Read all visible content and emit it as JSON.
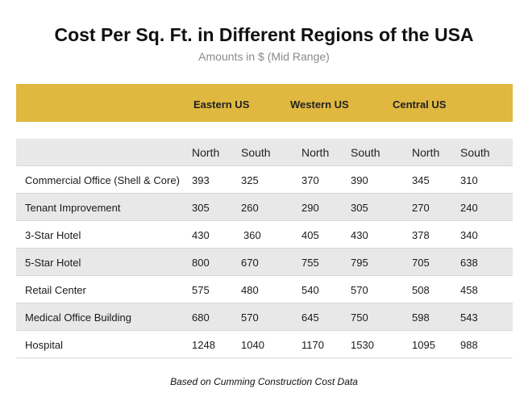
{
  "title": "Cost Per Sq. Ft. in Different Regions of the USA",
  "subtitle": "Amounts in $ (Mid Range)",
  "footer": "Based on Cumming Construction Cost Data",
  "colors": {
    "band": "#E0B840",
    "alt_row": "#e8e8e8"
  },
  "chart_data": {
    "type": "table",
    "regions": [
      "Eastern US",
      "Western US",
      "Central US"
    ],
    "subcolumns": [
      "North",
      "South",
      "North",
      "South",
      "North",
      "South"
    ],
    "rows": [
      {
        "label": "Commercial Office (Shell & Core)",
        "values": [
          "393",
          "325",
          "370",
          "390",
          "345",
          "310"
        ]
      },
      {
        "label": "Tenant Improvement",
        "values": [
          "305",
          "260",
          "290",
          "305",
          "270",
          "240"
        ]
      },
      {
        "label": "3-Star Hotel",
        "values": [
          "430",
          "360",
          "405",
          "430",
          "378",
          "340"
        ]
      },
      {
        "label": "5-Star Hotel",
        "values": [
          "800",
          "670",
          "755",
          "795",
          "705",
          "638"
        ]
      },
      {
        "label": "Retail Center",
        "values": [
          "575",
          "480",
          "540",
          "570",
          "508",
          "458"
        ]
      },
      {
        "label": "Medical Office Building",
        "values": [
          "680",
          "570",
          "645",
          "750",
          "598",
          "543"
        ]
      },
      {
        "label": "Hospital",
        "values": [
          "1248",
          "1040",
          "1170",
          "1530",
          "1095",
          "988"
        ]
      }
    ]
  }
}
